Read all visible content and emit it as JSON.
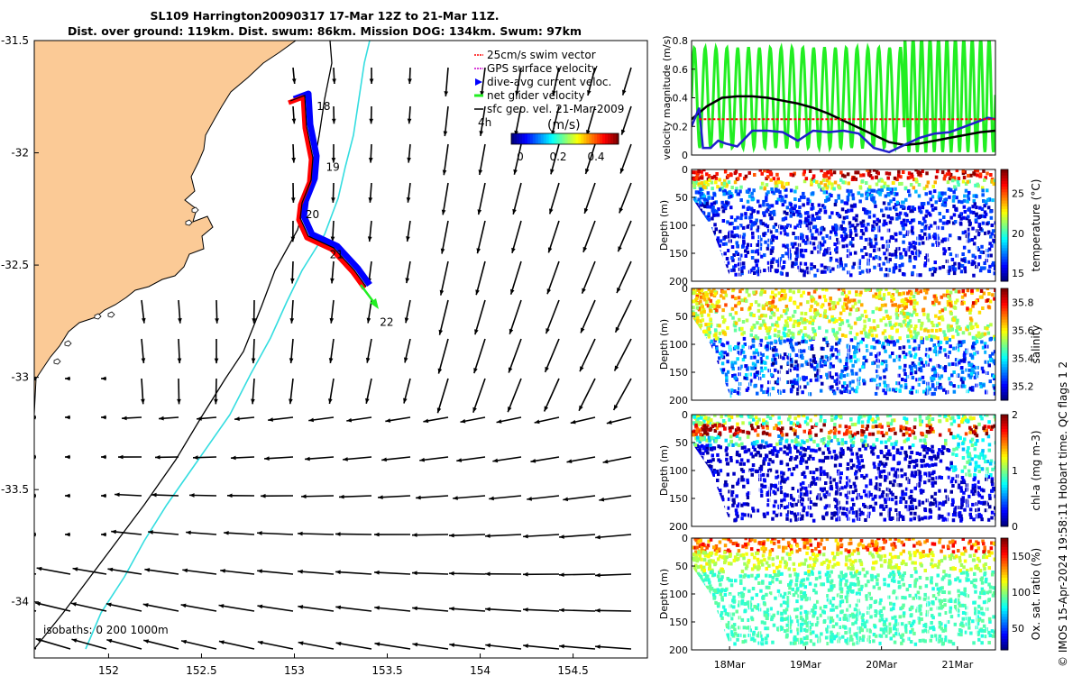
{
  "header": {
    "title_line1": "SL109 Harrington20090317 17-Mar 12Z to 21-Mar 11Z.",
    "title_line2": "Dist. over ground: 119km. Dist. swum: 86km. Mission DOG: 134km. Swum: 97km"
  },
  "credit": "© IMOS 15-Apr-2024 19:58:11 Hobart time. QC flags 1  2",
  "colors": {
    "land": "#fbca96",
    "coast": "#000000",
    "isobath_200": "#000000",
    "isobath_1000": "#34dde0",
    "swim_vector": "#ff0000",
    "gps_velocity": "#cc00cc",
    "dive_avg": "#0000ff",
    "net_glider": "#22ee22",
    "sfc_geo": "#000000"
  },
  "map": {
    "lon_range": [
      151.6,
      154.9
    ],
    "lat_range": [
      -34.25,
      -31.5
    ],
    "x_ticks": [
      "152",
      "152.5",
      "153",
      "153.5",
      "154",
      "154.5"
    ],
    "y_ticks": [
      "-31.5",
      "-32",
      "-32.5",
      "-33",
      "-33.5",
      "-34"
    ],
    "isobath_label": "isobaths: 0   200  1000m",
    "day_labels": [
      {
        "text": "18",
        "lon": 153.12,
        "lat": -31.81
      },
      {
        "text": "19",
        "lon": 153.17,
        "lat": -32.08
      },
      {
        "text": "20",
        "lon": 153.06,
        "lat": -32.29
      },
      {
        "text": "21",
        "lon": 153.19,
        "lat": -32.47
      },
      {
        "text": "22",
        "lon": 153.46,
        "lat": -32.77
      }
    ],
    "legend": [
      {
        "label": "25cm/s swim vector",
        "key": "swim_vector"
      },
      {
        "label": "GPS surface velocity",
        "key": "gps_velocity"
      },
      {
        "label": "dive-avg current veloc.",
        "key": "dive_avg"
      },
      {
        "label": "net glider velocity",
        "key": "net_glider"
      },
      {
        "label": "sfc geo. vel. 21-Mar-2009",
        "key": "sfc_geo"
      }
    ],
    "legend_extra": "4h",
    "colorbar": {
      "title": "(m/s)",
      "ticks": [
        "0",
        "0.2",
        "0.4"
      ]
    }
  },
  "chart_data": [
    {
      "type": "line",
      "title": "velocity magnitude",
      "ylabel": "velocity magnitude (m/s)",
      "xlim": [
        17.5,
        21.5
      ],
      "ylim": [
        0,
        0.8
      ],
      "yticks": [
        "0",
        "0.2",
        "0.4",
        "0.6",
        "0.8"
      ],
      "series": [
        {
          "name": "sfc geo. vel.",
          "color": "#000000",
          "x": [
            17.5,
            17.7,
            17.9,
            18.1,
            18.3,
            18.5,
            18.7,
            18.9,
            19.1,
            19.3,
            19.5,
            19.7,
            19.9,
            20.1,
            20.3,
            20.5,
            20.7,
            20.9,
            21.1,
            21.3,
            21.5
          ],
          "values": [
            0.25,
            0.34,
            0.4,
            0.41,
            0.41,
            0.4,
            0.38,
            0.36,
            0.33,
            0.29,
            0.24,
            0.19,
            0.14,
            0.09,
            0.07,
            0.08,
            0.1,
            0.12,
            0.14,
            0.16,
            0.17
          ]
        },
        {
          "name": "dive-avg current veloc.",
          "color": "#1f1fcc",
          "x": [
            17.5,
            17.6,
            17.65,
            17.75,
            17.85,
            17.95,
            18.1,
            18.3,
            18.5,
            18.7,
            18.9,
            19.1,
            19.3,
            19.5,
            19.7,
            19.9,
            20.1,
            20.3,
            20.5,
            20.7,
            20.9,
            21.1,
            21.3,
            21.4,
            21.5
          ],
          "values": [
            0.2,
            0.33,
            0.05,
            0.05,
            0.1,
            0.08,
            0.06,
            0.17,
            0.17,
            0.16,
            0.1,
            0.17,
            0.16,
            0.17,
            0.15,
            0.05,
            0.02,
            0.07,
            0.12,
            0.15,
            0.16,
            0.2,
            0.24,
            0.26,
            0.25
          ]
        },
        {
          "name": "25cm/s swim vector",
          "color": "#ff0000",
          "x": [
            17.6,
            21.5
          ],
          "values": [
            0.25,
            0.25
          ]
        }
      ],
      "net_glider": {
        "name": "net glider velocity",
        "color": "#22ee22",
        "range": [
          0.0,
          0.8
        ]
      }
    },
    {
      "type": "heatmap",
      "label": "temperature (°C)",
      "ylabel": "Depth (m)",
      "ylim": [
        200,
        0
      ],
      "yticks": [
        "0",
        "50",
        "100",
        "150",
        "200"
      ],
      "clim": [
        14,
        28
      ],
      "cticks": [
        "15",
        "20",
        "25"
      ],
      "surface": 22,
      "deep": 14.5,
      "mixed_layer": 25
    },
    {
      "type": "heatmap",
      "label": "salinity",
      "ylabel": "Depth (m)",
      "ylim": [
        200,
        0
      ],
      "yticks": [
        "0",
        "50",
        "100",
        "150",
        "200"
      ],
      "clim": [
        35.1,
        35.9
      ],
      "cticks": [
        "35.2",
        "35.4",
        "35.6",
        "35.8"
      ],
      "surface": 35.55,
      "deep": 35.2
    },
    {
      "type": "heatmap",
      "label": "chl-a (mg m-3)",
      "ylabel": "Depth (m)",
      "ylim": [
        200,
        0
      ],
      "yticks": [
        "0",
        "50",
        "100",
        "150",
        "200"
      ],
      "clim": [
        0,
        2
      ],
      "cticks": [
        "0",
        "1",
        "2"
      ],
      "surface": 0.6,
      "deep": 0.1,
      "max_depth": 30
    },
    {
      "type": "heatmap",
      "label": "Ox. sat. ratio (%)",
      "ylabel": "Depth (m)",
      "ylim": [
        200,
        0
      ],
      "yticks": [
        "0",
        "50",
        "100",
        "150",
        "200"
      ],
      "clim": [
        20,
        175
      ],
      "cticks": [
        "50",
        "100",
        "150"
      ],
      "surface": 115,
      "deep": 85
    }
  ],
  "time_axis": {
    "ticks": [
      "18Mar",
      "19Mar",
      "20Mar",
      "21Mar"
    ],
    "tick_days": [
      18,
      19,
      20,
      21
    ]
  }
}
